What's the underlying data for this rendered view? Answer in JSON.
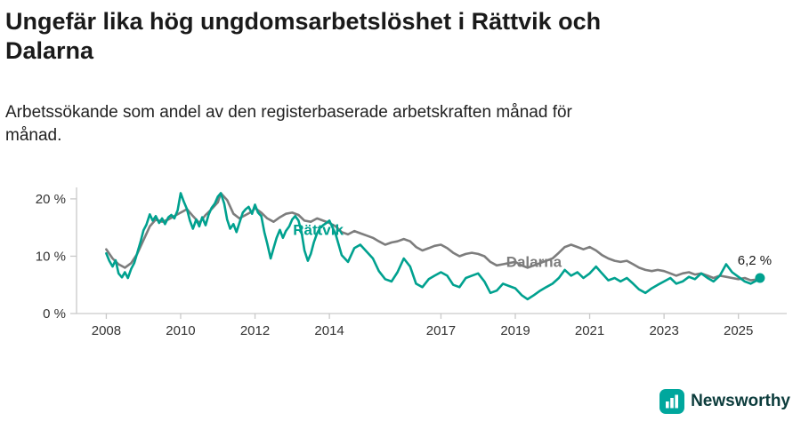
{
  "footer": {
    "brand": "Newsworthy",
    "logo_color": "#00a79d"
  },
  "chart_data": {
    "type": "line",
    "title": "Ungefär lika hög ungdomsarbetslöshet i Rättvik och Dalarna",
    "subtitle": "Arbetssökande som andel av den registerbaserade arbetskraften månad för månad.",
    "xlabel": "",
    "ylabel": "",
    "unit": "%",
    "grid": false,
    "legend": "inline-labels",
    "xlim": [
      2007.2,
      2026.3
    ],
    "ylim": [
      0,
      22
    ],
    "axis_color": "#c9c9c9",
    "tick_color": "#333333",
    "x_ticks": [
      {
        "value": 2008,
        "label": "2008"
      },
      {
        "value": 2010,
        "label": "2010"
      },
      {
        "value": 2012,
        "label": "2012"
      },
      {
        "value": 2014,
        "label": "2014"
      },
      {
        "value": 2017,
        "label": "2017"
      },
      {
        "value": 2019,
        "label": "2019"
      },
      {
        "value": 2021,
        "label": "2021"
      },
      {
        "value": 2023,
        "label": "2023"
      },
      {
        "value": 2025,
        "label": "2025"
      }
    ],
    "y_ticks": [
      {
        "value": 0,
        "label": "0 %"
      },
      {
        "value": 10,
        "label": "10 %"
      },
      {
        "value": 20,
        "label": "20 %"
      }
    ],
    "series": [
      {
        "name": "Dalarna",
        "color": "#7d7d7d",
        "label_x": 2019.5,
        "label_y": 8.1,
        "points": [
          [
            2008.0,
            11.2
          ],
          [
            2008.17,
            9.6
          ],
          [
            2008.33,
            8.6
          ],
          [
            2008.5,
            8.0
          ],
          [
            2008.67,
            8.8
          ],
          [
            2008.83,
            10.4
          ],
          [
            2009.0,
            12.8
          ],
          [
            2009.17,
            15.2
          ],
          [
            2009.33,
            16.4
          ],
          [
            2009.5,
            16.0
          ],
          [
            2009.67,
            16.4
          ],
          [
            2009.83,
            17.0
          ],
          [
            2010.0,
            17.6
          ],
          [
            2010.17,
            18.2
          ],
          [
            2010.33,
            17.0
          ],
          [
            2010.5,
            15.8
          ],
          [
            2010.67,
            17.2
          ],
          [
            2010.83,
            18.2
          ],
          [
            2011.0,
            19.4
          ],
          [
            2011.08,
            21.0
          ],
          [
            2011.25,
            19.8
          ],
          [
            2011.42,
            17.4
          ],
          [
            2011.58,
            16.6
          ],
          [
            2011.75,
            17.2
          ],
          [
            2011.92,
            17.8
          ],
          [
            2012.0,
            18.4
          ],
          [
            2012.17,
            17.6
          ],
          [
            2012.33,
            16.6
          ],
          [
            2012.5,
            16.0
          ],
          [
            2012.67,
            16.8
          ],
          [
            2012.83,
            17.4
          ],
          [
            2013.0,
            17.6
          ],
          [
            2013.17,
            17.2
          ],
          [
            2013.33,
            16.2
          ],
          [
            2013.5,
            16.0
          ],
          [
            2013.67,
            16.6
          ],
          [
            2013.83,
            16.2
          ],
          [
            2014.0,
            15.8
          ],
          [
            2014.17,
            15.2
          ],
          [
            2014.33,
            14.2
          ],
          [
            2014.5,
            13.8
          ],
          [
            2014.67,
            14.4
          ],
          [
            2014.83,
            14.0
          ],
          [
            2015.0,
            13.6
          ],
          [
            2015.17,
            13.2
          ],
          [
            2015.33,
            12.6
          ],
          [
            2015.5,
            12.0
          ],
          [
            2015.67,
            12.4
          ],
          [
            2015.83,
            12.6
          ],
          [
            2016.0,
            13.0
          ],
          [
            2016.17,
            12.6
          ],
          [
            2016.33,
            11.6
          ],
          [
            2016.5,
            11.0
          ],
          [
            2016.67,
            11.4
          ],
          [
            2016.83,
            11.8
          ],
          [
            2017.0,
            12.0
          ],
          [
            2017.17,
            11.4
          ],
          [
            2017.33,
            10.6
          ],
          [
            2017.5,
            10.0
          ],
          [
            2017.67,
            10.4
          ],
          [
            2017.83,
            10.6
          ],
          [
            2018.0,
            10.4
          ],
          [
            2018.17,
            10.0
          ],
          [
            2018.33,
            9.0
          ],
          [
            2018.5,
            8.4
          ],
          [
            2018.67,
            8.6
          ],
          [
            2018.83,
            8.8
          ],
          [
            2019.0,
            9.0
          ],
          [
            2019.17,
            8.4
          ],
          [
            2019.33,
            8.0
          ],
          [
            2019.5,
            8.4
          ],
          [
            2019.67,
            8.8
          ],
          [
            2019.83,
            9.2
          ],
          [
            2020.0,
            9.6
          ],
          [
            2020.17,
            10.6
          ],
          [
            2020.33,
            11.6
          ],
          [
            2020.5,
            12.0
          ],
          [
            2020.67,
            11.6
          ],
          [
            2020.83,
            11.2
          ],
          [
            2021.0,
            11.6
          ],
          [
            2021.17,
            11.0
          ],
          [
            2021.33,
            10.2
          ],
          [
            2021.5,
            9.6
          ],
          [
            2021.67,
            9.2
          ],
          [
            2021.83,
            9.0
          ],
          [
            2022.0,
            9.2
          ],
          [
            2022.17,
            8.6
          ],
          [
            2022.33,
            8.0
          ],
          [
            2022.5,
            7.6
          ],
          [
            2022.67,
            7.4
          ],
          [
            2022.83,
            7.6
          ],
          [
            2023.0,
            7.4
          ],
          [
            2023.17,
            7.0
          ],
          [
            2023.33,
            6.6
          ],
          [
            2023.5,
            7.0
          ],
          [
            2023.67,
            7.2
          ],
          [
            2023.83,
            6.8
          ],
          [
            2024.0,
            7.0
          ],
          [
            2024.17,
            6.6
          ],
          [
            2024.33,
            6.2
          ],
          [
            2024.5,
            6.6
          ],
          [
            2024.67,
            6.4
          ],
          [
            2024.83,
            6.2
          ],
          [
            2025.0,
            6.0
          ],
          [
            2025.17,
            6.2
          ],
          [
            2025.33,
            5.8
          ],
          [
            2025.58,
            6.0
          ]
        ]
      },
      {
        "name": "Rättvik",
        "color": "#00a18f",
        "label_x": 2013.7,
        "label_y": 13.7,
        "end_marker": true,
        "end_value": 6.2,
        "end_label": "6,2 %",
        "points": [
          [
            2008.0,
            10.5
          ],
          [
            2008.08,
            9.2
          ],
          [
            2008.17,
            8.2
          ],
          [
            2008.25,
            9.3
          ],
          [
            2008.33,
            7.0
          ],
          [
            2008.42,
            6.3
          ],
          [
            2008.5,
            7.2
          ],
          [
            2008.58,
            6.2
          ],
          [
            2008.67,
            7.8
          ],
          [
            2008.75,
            8.8
          ],
          [
            2008.83,
            10.5
          ],
          [
            2008.92,
            12.5
          ],
          [
            2009.0,
            14.5
          ],
          [
            2009.08,
            15.5
          ],
          [
            2009.17,
            17.3
          ],
          [
            2009.25,
            16.2
          ],
          [
            2009.33,
            17.0
          ],
          [
            2009.42,
            15.8
          ],
          [
            2009.5,
            16.6
          ],
          [
            2009.58,
            15.6
          ],
          [
            2009.67,
            16.8
          ],
          [
            2009.75,
            17.2
          ],
          [
            2009.83,
            16.6
          ],
          [
            2009.92,
            18.0
          ],
          [
            2010.0,
            21.0
          ],
          [
            2010.08,
            19.6
          ],
          [
            2010.17,
            18.2
          ],
          [
            2010.25,
            16.2
          ],
          [
            2010.33,
            14.8
          ],
          [
            2010.42,
            16.4
          ],
          [
            2010.5,
            15.2
          ],
          [
            2010.58,
            16.8
          ],
          [
            2010.67,
            15.4
          ],
          [
            2010.75,
            17.2
          ],
          [
            2010.83,
            18.4
          ],
          [
            2010.92,
            19.2
          ],
          [
            2011.0,
            20.4
          ],
          [
            2011.08,
            21.0
          ],
          [
            2011.17,
            19.2
          ],
          [
            2011.25,
            16.4
          ],
          [
            2011.33,
            14.8
          ],
          [
            2011.42,
            15.6
          ],
          [
            2011.5,
            14.2
          ],
          [
            2011.58,
            15.8
          ],
          [
            2011.67,
            17.6
          ],
          [
            2011.75,
            18.2
          ],
          [
            2011.83,
            18.6
          ],
          [
            2011.92,
            17.4
          ],
          [
            2012.0,
            19.0
          ],
          [
            2012.08,
            17.6
          ],
          [
            2012.17,
            17.0
          ],
          [
            2012.25,
            14.2
          ],
          [
            2012.33,
            12.2
          ],
          [
            2012.42,
            9.6
          ],
          [
            2012.5,
            11.4
          ],
          [
            2012.58,
            13.2
          ],
          [
            2012.67,
            14.6
          ],
          [
            2012.75,
            13.2
          ],
          [
            2012.83,
            14.4
          ],
          [
            2012.92,
            15.2
          ],
          [
            2013.0,
            16.4
          ],
          [
            2013.08,
            17.0
          ],
          [
            2013.17,
            16.2
          ],
          [
            2013.25,
            14.2
          ],
          [
            2013.33,
            11.0
          ],
          [
            2013.42,
            9.2
          ],
          [
            2013.5,
            10.4
          ],
          [
            2013.58,
            12.4
          ],
          [
            2013.67,
            14.0
          ],
          [
            2013.75,
            15.0
          ],
          [
            2013.83,
            15.4
          ],
          [
            2013.92,
            15.8
          ],
          [
            2014.0,
            16.2
          ],
          [
            2014.17,
            13.8
          ],
          [
            2014.33,
            10.2
          ],
          [
            2014.5,
            9.0
          ],
          [
            2014.67,
            11.4
          ],
          [
            2014.83,
            12.0
          ],
          [
            2015.0,
            10.8
          ],
          [
            2015.17,
            9.6
          ],
          [
            2015.33,
            7.4
          ],
          [
            2015.5,
            6.0
          ],
          [
            2015.67,
            5.6
          ],
          [
            2015.83,
            7.2
          ],
          [
            2016.0,
            9.6
          ],
          [
            2016.17,
            8.2
          ],
          [
            2016.33,
            5.2
          ],
          [
            2016.5,
            4.6
          ],
          [
            2016.67,
            6.0
          ],
          [
            2016.83,
            6.6
          ],
          [
            2017.0,
            7.2
          ],
          [
            2017.17,
            6.6
          ],
          [
            2017.33,
            5.0
          ],
          [
            2017.5,
            4.6
          ],
          [
            2017.67,
            6.2
          ],
          [
            2017.83,
            6.6
          ],
          [
            2018.0,
            7.0
          ],
          [
            2018.17,
            5.6
          ],
          [
            2018.33,
            3.6
          ],
          [
            2018.5,
            4.0
          ],
          [
            2018.67,
            5.2
          ],
          [
            2018.83,
            4.8
          ],
          [
            2019.0,
            4.4
          ],
          [
            2019.17,
            3.2
          ],
          [
            2019.33,
            2.5
          ],
          [
            2019.5,
            3.2
          ],
          [
            2019.67,
            4.0
          ],
          [
            2019.83,
            4.6
          ],
          [
            2020.0,
            5.2
          ],
          [
            2020.17,
            6.2
          ],
          [
            2020.33,
            7.6
          ],
          [
            2020.5,
            6.6
          ],
          [
            2020.67,
            7.2
          ],
          [
            2020.83,
            6.2
          ],
          [
            2021.0,
            7.0
          ],
          [
            2021.17,
            8.2
          ],
          [
            2021.33,
            7.0
          ],
          [
            2021.5,
            5.8
          ],
          [
            2021.67,
            6.2
          ],
          [
            2021.83,
            5.6
          ],
          [
            2022.0,
            6.2
          ],
          [
            2022.17,
            5.2
          ],
          [
            2022.33,
            4.2
          ],
          [
            2022.5,
            3.6
          ],
          [
            2022.67,
            4.4
          ],
          [
            2022.83,
            5.0
          ],
          [
            2023.0,
            5.6
          ],
          [
            2023.17,
            6.2
          ],
          [
            2023.33,
            5.2
          ],
          [
            2023.5,
            5.6
          ],
          [
            2023.67,
            6.4
          ],
          [
            2023.83,
            6.0
          ],
          [
            2024.0,
            7.0
          ],
          [
            2024.17,
            6.2
          ],
          [
            2024.33,
            5.6
          ],
          [
            2024.5,
            6.6
          ],
          [
            2024.67,
            8.6
          ],
          [
            2024.83,
            7.2
          ],
          [
            2025.0,
            6.4
          ],
          [
            2025.17,
            5.6
          ],
          [
            2025.33,
            5.2
          ],
          [
            2025.5,
            5.8
          ],
          [
            2025.58,
            6.2
          ]
        ]
      }
    ]
  }
}
